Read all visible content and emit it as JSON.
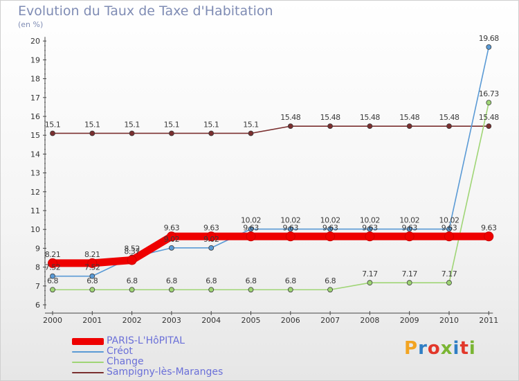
{
  "page": {
    "title": "Evolution du Taux de Taxe d'Habitation",
    "unit": "(en %)",
    "logo_text": "Proxiti",
    "logo_colors": [
      "#f2a422",
      "#2f7ec4",
      "#e2372a",
      "#7ab533",
      "#2f7ec4",
      "#e2372a",
      "#7ab533"
    ]
  },
  "chart_data": {
    "type": "line",
    "title": "Evolution du Taux de Taxe d'Habitation",
    "ylabel": "(en %)",
    "xlabel": "",
    "categories": [
      "2000",
      "2001",
      "2002",
      "2003",
      "2004",
      "2005",
      "2006",
      "2007",
      "2008",
      "2009",
      "2010",
      "2011"
    ],
    "y_ticks": [
      "6",
      "7",
      "8",
      "9",
      "10",
      "11",
      "12",
      "13",
      "14",
      "15",
      "16",
      "17",
      "18",
      "19",
      "20"
    ],
    "ylim": [
      6,
      20
    ],
    "grid": false,
    "legend_position": "bottom-left",
    "series": [
      {
        "name": "PARIS-L'HôPITAL",
        "color": "#ee0000",
        "values": [
          8.21,
          8.21,
          8.37,
          9.63,
          9.63,
          9.63,
          9.63,
          9.63,
          9.63,
          9.63,
          9.63,
          9.63
        ],
        "labels": [
          "8.21",
          "8.21",
          "8.37",
          "9.63",
          "9.63",
          "9.63",
          "9.63",
          "9.63",
          "9.63",
          "9.63",
          "9.63",
          "9.63"
        ]
      },
      {
        "name": "Créot",
        "color": "#5a9ad5",
        "values": [
          7.52,
          7.52,
          8.52,
          9.02,
          9.02,
          10.02,
          10.02,
          10.02,
          10.02,
          10.02,
          10.02,
          19.68
        ],
        "labels": [
          "7.52",
          "7.52",
          "8.52",
          "9.02",
          "9.02",
          "10.02",
          "10.02",
          "10.02",
          "10.02",
          "10.02",
          "10.02",
          "19.68"
        ]
      },
      {
        "name": "Change",
        "color": "#9fd575",
        "values": [
          6.8,
          6.8,
          6.8,
          6.8,
          6.8,
          6.8,
          6.8,
          6.8,
          7.17,
          7.17,
          7.17,
          16.73
        ],
        "labels": [
          "6.8",
          "6.8",
          "6.8",
          "6.8",
          "6.8",
          "6.8",
          "6.8",
          "6.8",
          "7.17",
          "7.17",
          "7.17",
          "16.73"
        ]
      },
      {
        "name": "Sampigny-lès-Maranges",
        "color": "#7a2f2f",
        "values": [
          15.1,
          15.1,
          15.1,
          15.1,
          15.1,
          15.1,
          15.48,
          15.48,
          15.48,
          15.48,
          15.48,
          15.48
        ],
        "labels": [
          "15.1",
          "15.1",
          "15.1",
          "15.1",
          "15.1",
          "15.1",
          "15.48",
          "15.48",
          "15.48",
          "15.48",
          "15.48",
          "15.48"
        ]
      }
    ]
  }
}
